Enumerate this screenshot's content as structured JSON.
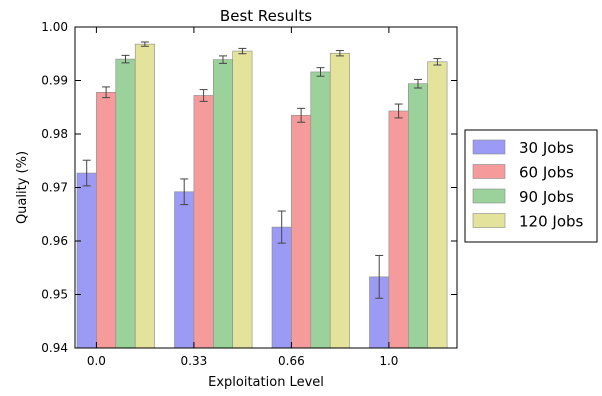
{
  "chart_data": {
    "type": "bar",
    "title": "Best Results",
    "xlabel": "Exploitation Level",
    "ylabel": "Quality (%)",
    "categories": [
      "0.0",
      "0.33",
      "0.66",
      "1.0"
    ],
    "ylim": [
      0.94,
      1.0
    ],
    "yticks": [
      "0.94",
      "0.95",
      "0.96",
      "0.97",
      "0.98",
      "0.99",
      "1.00"
    ],
    "grid": false,
    "legend_position": "right",
    "error_bars": true,
    "series": [
      {
        "name": "30 Jobs",
        "color": "#9b9bf5",
        "values": [
          0.9727,
          0.9692,
          0.9626,
          0.9533
        ],
        "errors": [
          0.0024,
          0.0024,
          0.003,
          0.004
        ]
      },
      {
        "name": "60 Jobs",
        "color": "#f59b9b",
        "values": [
          0.9878,
          0.9872,
          0.9835,
          0.9843
        ],
        "errors": [
          0.001,
          0.0011,
          0.0013,
          0.0013
        ]
      },
      {
        "name": "90 Jobs",
        "color": "#9bd19b",
        "values": [
          0.994,
          0.9939,
          0.9916,
          0.9894
        ],
        "errors": [
          0.0007,
          0.0007,
          0.0008,
          0.0008
        ]
      },
      {
        "name": "120 Jobs",
        "color": "#e3e39b",
        "values": [
          0.9968,
          0.9955,
          0.9951,
          0.9935
        ],
        "errors": [
          0.0004,
          0.0005,
          0.0005,
          0.0006
        ]
      }
    ]
  }
}
